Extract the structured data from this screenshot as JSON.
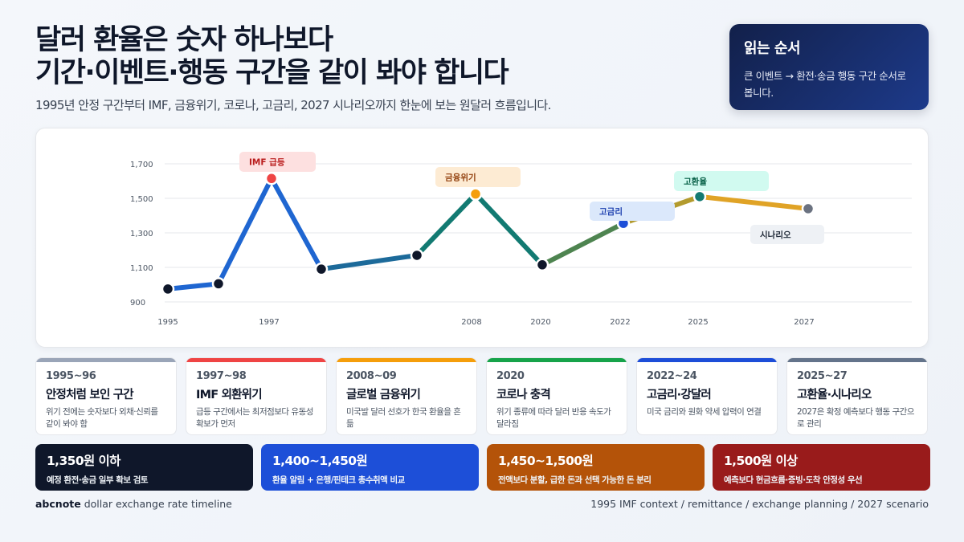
{
  "header": {
    "title_line1": "달러 환율은 숫자 하나보다",
    "title_line2": "기간·이벤트·행동 구간을 같이 봐야 합니다",
    "subtitle": "1995년 안정 구간부터 IMF, 금융위기, 코로나, 고금리, 2027 시나리오까지 한눈에 보는 원달러 흐름입니다."
  },
  "reading_box": {
    "title": "읽는 순서",
    "text": "큰 이벤트 → 환전·송금 행동 구간 순서로 봅니다."
  },
  "chart_data": {
    "type": "line",
    "y_ticks": [
      "1,700",
      "1,500",
      "1,300",
      "1,100",
      "900"
    ],
    "ylim": [
      900,
      1700
    ],
    "x_tick_labels": [
      "1995",
      "1997",
      "2008",
      "2020",
      "2022",
      "2025",
      "2027"
    ],
    "points": [
      {
        "x": "1995",
        "y": 975
      },
      {
        "x": "1996",
        "y": 1005
      },
      {
        "x": "1997",
        "y": 1615
      },
      {
        "x": "1999",
        "y": 1090
      },
      {
        "x": "2006",
        "y": 1170
      },
      {
        "x": "2008",
        "y": 1525
      },
      {
        "x": "2020",
        "y": 1115
      },
      {
        "x": "2022",
        "y": 1355
      },
      {
        "x": "2025",
        "y": 1510
      },
      {
        "x": "2027",
        "y": 1440
      }
    ],
    "annotations": [
      {
        "label": "IMF 급등",
        "point": "1997",
        "bg": "#fde0e0",
        "color": "#b91c1c"
      },
      {
        "label": "금융위기",
        "point": "2008",
        "bg": "#fdebd3",
        "color": "#92400e"
      },
      {
        "label": "고금리",
        "point": "2022",
        "bg": "#dbe8fb",
        "color": "#1e40af"
      },
      {
        "label": "고환율",
        "point": "2025",
        "bg": "#d1faf0",
        "color": "#065f46"
      },
      {
        "label": "시나리오",
        "point": "2027",
        "bg": "#eef1f5",
        "color": "#1f2937"
      }
    ],
    "colors": {
      "blue": "#1f66d1",
      "steel": "#1c6a9a",
      "teal": "#127a72",
      "green": "#4e8450",
      "olive": "#b39b2e",
      "gold": "#e0a326"
    },
    "grid": true
  },
  "periods": [
    {
      "range": "1995~96",
      "title": "안정처럼 보인 구간",
      "desc": "위기 전에는 숫자보다 외채·신뢰를 같이 봐야 함",
      "color": "#9aa5b8"
    },
    {
      "range": "1997~98",
      "title": "IMF 외환위기",
      "desc": "급등 구간에서는 최저점보다 유동성 확보가 먼저",
      "color": "#ef4444"
    },
    {
      "range": "2008~09",
      "title": "글로벌 금융위기",
      "desc": "미국발 달러 선호가 한국 환율을 흔듦",
      "color": "#f59e0b"
    },
    {
      "range": "2020",
      "title": "코로나 충격",
      "desc": "위기 종류에 따라 달러 반응 속도가 달라짐",
      "color": "#16a34a"
    },
    {
      "range": "2022~24",
      "title": "고금리·강달러",
      "desc": "미국 금리와 원화 약세 압력이 연결",
      "color": "#1d4ed8"
    },
    {
      "range": "2025~27",
      "title": "고환율·시나리오",
      "desc": "2027은 확정 예측보다 행동 구간으로 관리",
      "color": "#64748b"
    }
  ],
  "bands": [
    {
      "title": "1,350원 이하",
      "desc": "예정 환전·송금 일부 확보 검토",
      "color": "#0f172a"
    },
    {
      "title": "1,400~1,450원",
      "desc": "환율 알림 + 은행/핀테크 총수취액 비교",
      "color": "#1d4fd8"
    },
    {
      "title": "1,450~1,500원",
      "desc": "전액보다 분할, 급한 돈과 선택 가능한 돈 분리",
      "color": "#b45309"
    },
    {
      "title": "1,500원 이상",
      "desc": "예측보다 현금흐름·증빙·도착 안정성 우선",
      "color": "#991b1b"
    }
  ],
  "footer": {
    "brand": "abcnote",
    "left_text": "dollar exchange rate timeline",
    "right_text": "1995 IMF context / remittance / exchange planning / 2027 scenario"
  }
}
